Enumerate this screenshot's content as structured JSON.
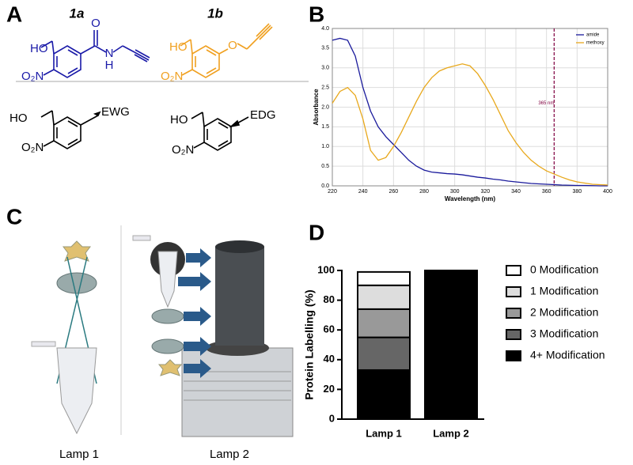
{
  "panel_labels": [
    "A",
    "B",
    "C",
    "D"
  ],
  "panel_a": {
    "structures": [
      {
        "name": "1a",
        "atoms": [
          "HO",
          "O₂N",
          "O",
          "N",
          "H"
        ]
      },
      {
        "name": "1b",
        "atoms": [
          "HO",
          "O₂N",
          "O"
        ]
      },
      {
        "atoms": [
          "HO",
          "O₂N",
          "EWG"
        ]
      },
      {
        "atoms": [
          "HO",
          "O₂N",
          "EDG"
        ]
      }
    ]
  },
  "panel_c": {
    "captions": [
      "Lamp 1",
      "Lamp 2"
    ]
  },
  "chart_data": [
    {
      "type": "line",
      "x": [
        220,
        225,
        230,
        235,
        240,
        245,
        250,
        255,
        260,
        265,
        270,
        275,
        280,
        285,
        290,
        295,
        300,
        305,
        310,
        315,
        320,
        325,
        330,
        335,
        340,
        345,
        350,
        355,
        360,
        365,
        370,
        375,
        380,
        385,
        390,
        395,
        400
      ],
      "series": [
        {
          "name": "amide",
          "color": "#1a1a9c",
          "values": [
            3.7,
            3.75,
            3.7,
            3.3,
            2.5,
            1.9,
            1.5,
            1.25,
            1.05,
            0.85,
            0.65,
            0.5,
            0.4,
            0.35,
            0.33,
            0.31,
            0.3,
            0.28,
            0.25,
            0.22,
            0.2,
            0.17,
            0.15,
            0.12,
            0.1,
            0.08,
            0.06,
            0.05,
            0.04,
            0.03,
            0.02,
            0.015,
            0.01,
            0.01,
            0.005,
            0,
            0
          ]
        },
        {
          "name": "methoxy",
          "color": "#e8a81c",
          "values": [
            2.1,
            2.4,
            2.5,
            2.3,
            1.7,
            0.9,
            0.65,
            0.72,
            1.0,
            1.35,
            1.75,
            2.15,
            2.5,
            2.75,
            2.92,
            3.0,
            3.05,
            3.1,
            3.05,
            2.85,
            2.55,
            2.2,
            1.8,
            1.4,
            1.1,
            0.85,
            0.65,
            0.5,
            0.38,
            0.3,
            0.22,
            0.15,
            0.1,
            0.07,
            0.04,
            0.03,
            0.02
          ]
        }
      ],
      "xlim": [
        220,
        400
      ],
      "ylim": [
        0,
        4
      ],
      "xticks": [
        220,
        240,
        260,
        280,
        300,
        320,
        340,
        360,
        380,
        400
      ],
      "yticks": [
        {
          "value": 0,
          "label": "0.0"
        },
        {
          "value": 0.5,
          "label": "0.5"
        },
        {
          "value": 1,
          "label": "1.0"
        },
        {
          "value": 1.5,
          "label": "1.5"
        },
        {
          "value": 2,
          "label": "2.0"
        },
        {
          "value": 2.5,
          "label": "2.5"
        },
        {
          "value": 3,
          "label": "3.0"
        },
        {
          "value": 3.5,
          "label": "3.5"
        },
        {
          "value": 4,
          "label": "4.0"
        }
      ],
      "xlabel": "Wavelength (nm)",
      "ylabel": "Absorbance",
      "grid": true,
      "legend": "upper right",
      "annotation": {
        "x": 365,
        "text": "365 nm",
        "color": "#800040"
      }
    },
    {
      "type": "bar",
      "stacked": true,
      "categories": [
        "Lamp 1",
        "Lamp 2"
      ],
      "series": [
        {
          "name": "4+ Modification",
          "color": "#000000",
          "values": [
            33,
            100
          ]
        },
        {
          "name": "3 Modification",
          "color": "#666666",
          "values": [
            22,
            0
          ]
        },
        {
          "name": "2 Modification",
          "color": "#999999",
          "values": [
            19,
            0
          ]
        },
        {
          "name": "1 Modification",
          "color": "#dddddd",
          "values": [
            16,
            0
          ]
        },
        {
          "name": "0 Modification",
          "color": "#ffffff",
          "values": [
            9,
            0
          ]
        }
      ],
      "ylim": [
        0,
        100
      ],
      "yticks": [
        0,
        20,
        40,
        60,
        80,
        100
      ],
      "ylabel": "Protein Labelling (%)",
      "legend": "right"
    }
  ]
}
